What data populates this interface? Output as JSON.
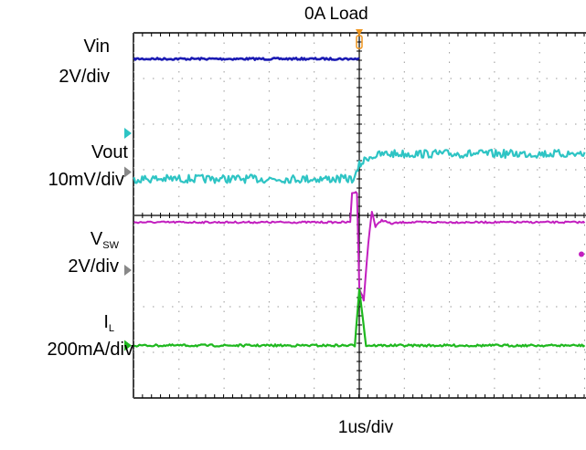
{
  "title": "0A Load",
  "timebase": "1us/div",
  "channels": [
    {
      "name": "Vin",
      "name_main": "Vin",
      "name_sub": "",
      "scale": "2V/div",
      "color": "#1a1ab3"
    },
    {
      "name": "Vout",
      "name_main": "Vout",
      "name_sub": "",
      "scale": "10mV/div",
      "color": "#2ec4c4"
    },
    {
      "name": "VSW",
      "name_main": "V",
      "name_sub": "SW",
      "scale": "2V/div",
      "color": "#c21fbf"
    },
    {
      "name": "IL",
      "name_main": "I",
      "name_sub": "L",
      "scale": "200mA/div",
      "color": "#1fb81f"
    }
  ],
  "colors": {
    "trigger_marker": "#f0961e",
    "ref_marker_gray": "#888888",
    "grid_dots": "#9a9a9a",
    "frame": "#000000"
  },
  "chart_data": {
    "type": "line",
    "title": "0A Load",
    "xlabel": "1us/div",
    "x_divisions": 10,
    "y_divisions": 8,
    "grid": true,
    "x_range_div": [
      -5,
      0
    ],
    "trigger_x_div": 0,
    "series": [
      {
        "name": "Vin",
        "scale": "2V/div",
        "level_div": 3.43,
        "points": [
          [
            -5,
            3.43
          ],
          [
            0,
            3.43
          ]
        ]
      },
      {
        "name": "Vout",
        "scale": "10mV/div",
        "level_div_before": 0.8,
        "level_div_after": 1.35,
        "points": [
          [
            -5,
            0.8
          ],
          [
            -0.1,
            0.8
          ],
          [
            0.0,
            1.1
          ],
          [
            0.2,
            1.28
          ],
          [
            0.6,
            1.35
          ],
          [
            5,
            1.35
          ]
        ]
      },
      {
        "name": "VSW",
        "scale": "2V/div",
        "level_div_before": -0.15,
        "level_div_after": -0.15,
        "points": [
          [
            -5,
            -0.15
          ],
          [
            -0.2,
            -0.15
          ],
          [
            -0.16,
            0.5
          ],
          [
            -0.05,
            0.5
          ],
          [
            0.0,
            -1.6
          ],
          [
            0.1,
            -1.85
          ],
          [
            0.2,
            -0.6
          ],
          [
            0.28,
            0.1
          ],
          [
            0.36,
            -0.25
          ],
          [
            0.5,
            -0.1
          ],
          [
            0.7,
            -0.18
          ],
          [
            1.0,
            -0.15
          ],
          [
            5,
            -0.15
          ]
        ]
      },
      {
        "name": "IL",
        "scale": "200mA/div",
        "level_div": -2.85,
        "peak_div": -1.6,
        "points": [
          [
            -5,
            -2.85
          ],
          [
            -0.1,
            -2.85
          ],
          [
            0.0,
            -1.6
          ],
          [
            0.15,
            -2.85
          ],
          [
            5,
            -2.85
          ]
        ]
      }
    ]
  }
}
